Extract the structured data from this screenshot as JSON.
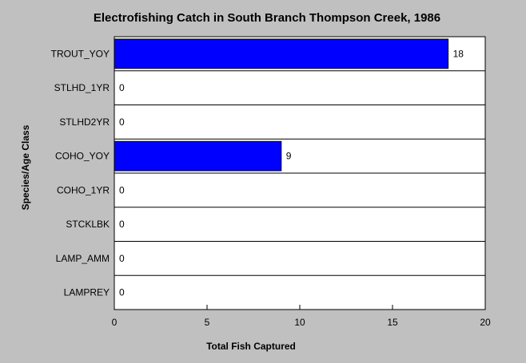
{
  "chart_data": {
    "type": "bar",
    "orientation": "horizontal",
    "title": "Electrofishing Catch in South Branch Thompson Creek, 1986",
    "xlabel": "Total Fish Captured",
    "ylabel": "Species/Age Class",
    "categories": [
      "TROUT_YOY",
      "STLHD_1YR",
      "STLHD2YR",
      "COHO_YOY",
      "COHO_1YR",
      "STCKLBK",
      "LAMP_AMM",
      "LAMPREY"
    ],
    "values": [
      18,
      0,
      0,
      9,
      0,
      0,
      0,
      0
    ],
    "xlim": [
      0,
      20
    ],
    "xticks": [
      0,
      5,
      10,
      15,
      20
    ],
    "grid": "horizontal separators between categories",
    "colors": {
      "bar": "#0000ff",
      "plot_background": "#ffffff",
      "figure_background": "#c0c0c0"
    }
  }
}
